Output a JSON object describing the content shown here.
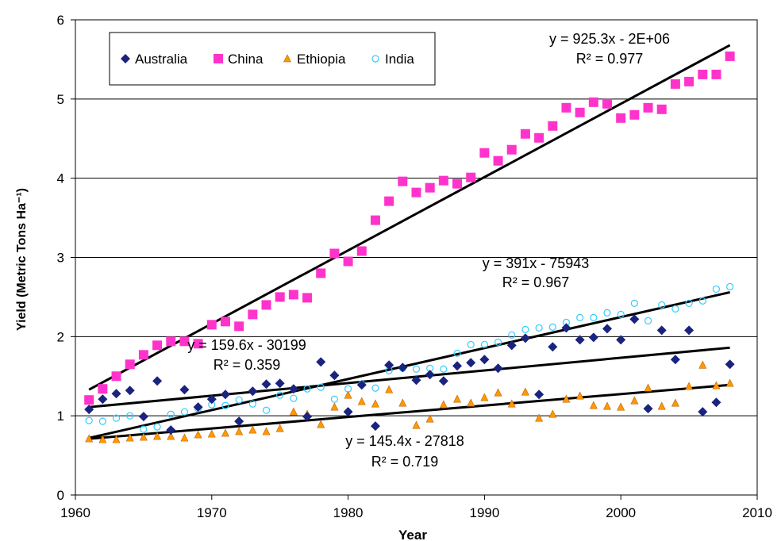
{
  "chart_data": {
    "type": "scatter",
    "title": "",
    "xlabel": "Year",
    "ylabel": "Yield (Metric Tons Ha⁻¹)",
    "xlim": [
      1960,
      2010
    ],
    "ylim": [
      0,
      6
    ],
    "xticks": [
      1960,
      1970,
      1980,
      1990,
      2000,
      2010
    ],
    "yticks": [
      0,
      1,
      2,
      3,
      4,
      5,
      6
    ],
    "grid": "horizontal",
    "legend_position": "top-left",
    "x": [
      1961,
      1962,
      1963,
      1964,
      1965,
      1966,
      1967,
      1968,
      1969,
      1970,
      1971,
      1972,
      1973,
      1974,
      1975,
      1976,
      1977,
      1978,
      1979,
      1980,
      1981,
      1982,
      1983,
      1984,
      1985,
      1986,
      1987,
      1988,
      1989,
      1990,
      1991,
      1992,
      1993,
      1994,
      1995,
      1996,
      1997,
      1998,
      1999,
      2000,
      2001,
      2002,
      2003,
      2004,
      2005,
      2006,
      2007,
      2008
    ],
    "series": [
      {
        "name": "Australia",
        "marker": "diamond",
        "color": "#1a237e",
        "values": [
          1.08,
          1.21,
          1.28,
          1.32,
          0.99,
          1.44,
          0.82,
          1.33,
          1.11,
          1.21,
          1.27,
          0.93,
          1.31,
          1.4,
          1.41,
          1.34,
          0.99,
          1.68,
          1.51,
          1.05,
          1.39,
          0.87,
          1.64,
          1.61,
          1.45,
          1.52,
          1.44,
          1.63,
          1.67,
          1.71,
          1.6,
          1.89,
          1.98,
          1.27,
          1.87,
          2.11,
          1.96,
          1.99,
          2.1,
          1.96,
          2.22,
          1.09,
          2.08,
          1.71,
          2.08,
          1.05,
          1.17,
          1.65
        ]
      },
      {
        "name": "China",
        "marker": "square",
        "color": "#ff33cc",
        "values": [
          1.2,
          1.34,
          1.5,
          1.65,
          1.77,
          1.89,
          1.94,
          1.94,
          1.91,
          2.15,
          2.19,
          2.13,
          2.28,
          2.4,
          2.5,
          2.53,
          2.49,
          2.8,
          3.05,
          2.95,
          3.08,
          3.47,
          3.71,
          3.96,
          3.82,
          3.88,
          3.97,
          3.93,
          4.01,
          4.32,
          4.22,
          4.36,
          4.56,
          4.51,
          4.66,
          4.89,
          4.83,
          4.96,
          4.94,
          4.76,
          4.8,
          4.89,
          4.87,
          5.19,
          5.22,
          5.31,
          5.31,
          5.54
        ]
      },
      {
        "name": "Ethiopia",
        "marker": "triangle",
        "color": "#ff9900",
        "values": [
          0.71,
          0.7,
          0.7,
          0.72,
          0.73,
          0.74,
          0.74,
          0.72,
          0.76,
          0.77,
          0.78,
          0.8,
          0.82,
          0.8,
          0.84,
          1.05,
          1.02,
          0.89,
          1.11,
          1.26,
          1.18,
          1.15,
          1.33,
          1.16,
          0.88,
          0.96,
          1.14,
          1.21,
          1.16,
          1.23,
          1.29,
          1.15,
          1.3,
          0.97,
          1.02,
          1.21,
          1.25,
          1.13,
          1.12,
          1.11,
          1.19,
          1.35,
          1.12,
          1.16,
          1.37,
          1.64,
          1.38,
          1.41
        ]
      },
      {
        "name": "India",
        "marker": "circle",
        "color": "#33ccff",
        "values": [
          0.94,
          0.93,
          0.97,
          1.0,
          0.83,
          0.86,
          1.02,
          1.05,
          1.09,
          1.14,
          1.13,
          1.2,
          1.15,
          1.07,
          1.26,
          1.22,
          1.34,
          1.36,
          1.21,
          1.34,
          1.4,
          1.35,
          1.57,
          1.6,
          1.59,
          1.6,
          1.59,
          1.79,
          1.9,
          1.9,
          1.93,
          2.02,
          2.09,
          2.11,
          2.12,
          2.18,
          2.24,
          2.24,
          2.3,
          2.28,
          2.42,
          2.2,
          2.4,
          2.35,
          2.42,
          2.45,
          2.6,
          2.63
        ]
      }
    ],
    "trendlines": [
      {
        "series": "China",
        "x": [
          1961,
          2008
        ],
        "y": [
          1.33,
          5.68
        ]
      },
      {
        "series": "India",
        "x": [
          1961,
          2008
        ],
        "y": [
          0.72,
          2.56
        ]
      },
      {
        "series": "Australia",
        "x": [
          1961,
          2008
        ],
        "y": [
          1.11,
          1.86
        ]
      },
      {
        "series": "Ethiopia",
        "x": [
          1961,
          2008
        ],
        "y": [
          0.71,
          1.39
        ]
      }
    ],
    "annotations": [
      {
        "id": "china",
        "line1": "y = 925.3x - 2E+06",
        "line2": "R² = 0.977"
      },
      {
        "id": "india",
        "line1": "y = 391x - 75943",
        "line2": "R² = 0.967"
      },
      {
        "id": "australia",
        "line1": "y = 159.6x - 30199",
        "line2": "R² = 0.359"
      },
      {
        "id": "ethiopia",
        "line1": "y = 145.4x - 27818",
        "line2": "R² = 0.719"
      }
    ]
  }
}
